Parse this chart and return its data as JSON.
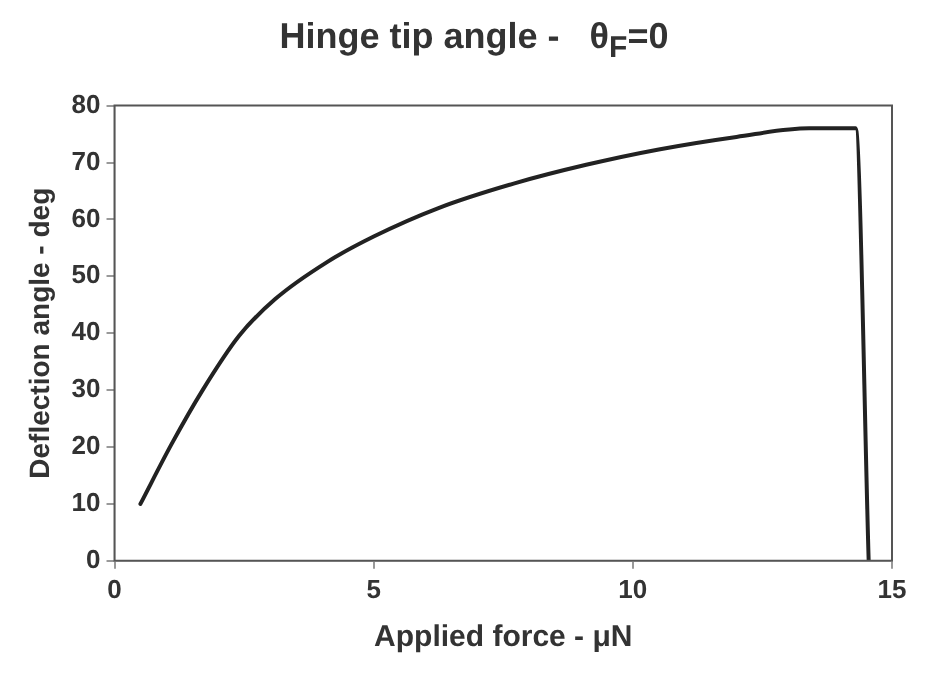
{
  "chart_data": {
    "type": "line",
    "title": "Hinge tip angle -   θ$_{F}$=0",
    "xlabel": "Applied force - μN",
    "ylabel": "Deflection angle - deg",
    "series": [
      {
        "color": "#222222",
        "x": [
          0.5,
          1.1,
          1.7,
          2.4,
          3.1,
          4.1,
          5,
          6.25,
          7.7,
          9.1,
          10.5,
          12,
          13.4,
          14.3,
          14.55
        ],
        "values": [
          10,
          20.5,
          30,
          39.5,
          46,
          52.5,
          57,
          62,
          66.3,
          69.6,
          72.3,
          74.5,
          76,
          76,
          0
        ]
      }
    ],
    "xlim": [
      0,
      15
    ],
    "xticks": [
      0,
      5,
      10,
      15
    ],
    "ylim": [
      0,
      80
    ],
    "yticks": [
      0,
      10,
      20,
      30,
      40,
      50,
      60,
      70,
      80
    ],
    "grid": false,
    "legend": false,
    "marker": "none",
    "line_style": "solid"
  }
}
